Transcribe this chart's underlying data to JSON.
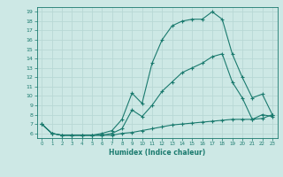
{
  "xlabel": "Humidex (Indice chaleur)",
  "background_color": "#cde8e5",
  "line_color": "#1a7a6e",
  "grid_color": "#b8d8d5",
  "xlim": [
    -0.5,
    23.5
  ],
  "ylim": [
    5.5,
    19.5
  ],
  "yticks": [
    6,
    7,
    8,
    9,
    10,
    11,
    12,
    13,
    14,
    15,
    16,
    17,
    18,
    19
  ],
  "xticks": [
    0,
    1,
    2,
    3,
    4,
    5,
    6,
    7,
    8,
    9,
    10,
    11,
    12,
    13,
    14,
    15,
    16,
    17,
    18,
    19,
    20,
    21,
    22,
    23
  ],
  "line1_x": [
    0,
    1,
    2,
    3,
    4,
    5,
    6,
    7,
    8,
    9,
    10,
    11,
    12,
    13,
    14,
    15,
    16,
    17,
    18,
    19,
    20,
    21,
    22,
    23
  ],
  "line1_y": [
    7.0,
    6.0,
    5.8,
    5.8,
    5.8,
    5.8,
    6.0,
    6.3,
    7.5,
    10.3,
    9.2,
    13.5,
    16.0,
    17.5,
    18.0,
    18.2,
    18.2,
    19.0,
    18.2,
    14.5,
    12.0,
    9.8,
    10.2,
    8.0
  ],
  "line2_x": [
    0,
    1,
    2,
    3,
    4,
    5,
    6,
    7,
    8,
    9,
    10,
    11,
    12,
    13,
    14,
    15,
    16,
    17,
    18,
    19,
    20,
    21,
    22,
    23
  ],
  "line2_y": [
    7.0,
    6.0,
    5.8,
    5.8,
    5.8,
    5.8,
    5.8,
    6.0,
    6.5,
    8.5,
    7.8,
    9.0,
    10.5,
    11.5,
    12.5,
    13.0,
    13.5,
    14.2,
    14.5,
    11.5,
    9.8,
    7.5,
    8.0,
    7.8
  ],
  "line3_x": [
    0,
    1,
    2,
    3,
    4,
    5,
    6,
    7,
    8,
    9,
    10,
    11,
    12,
    13,
    14,
    15,
    16,
    17,
    18,
    19,
    20,
    21,
    22,
    23
  ],
  "line3_y": [
    7.0,
    6.0,
    5.8,
    5.8,
    5.8,
    5.8,
    5.8,
    5.8,
    6.0,
    6.1,
    6.3,
    6.5,
    6.7,
    6.9,
    7.0,
    7.1,
    7.2,
    7.3,
    7.4,
    7.5,
    7.5,
    7.5,
    7.6,
    8.0
  ]
}
